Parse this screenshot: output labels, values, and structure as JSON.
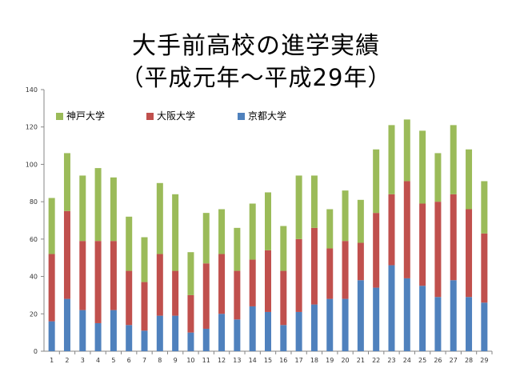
{
  "title_line1": "大手前高校の進学実績",
  "title_line2": "（平成元年～平成29年）",
  "chart_data": {
    "type": "bar",
    "stacked": true,
    "title": "大手前高校の進学実績（平成元年～平成29年）",
    "categories": [
      "1",
      "2",
      "3",
      "4",
      "5",
      "6",
      "7",
      "8",
      "9",
      "10",
      "11",
      "12",
      "13",
      "14",
      "15",
      "16",
      "17",
      "18",
      "19",
      "20",
      "21",
      "22",
      "23",
      "24",
      "25",
      "26",
      "27",
      "28",
      "29"
    ],
    "series": [
      {
        "name": "京都大学",
        "color": "#4f81bd",
        "values": [
          16,
          28,
          22,
          15,
          22,
          14,
          11,
          19,
          19,
          10,
          12,
          20,
          17,
          24,
          21,
          14,
          21,
          25,
          28,
          28,
          38,
          34,
          46,
          39,
          35,
          29,
          38,
          29,
          26
        ]
      },
      {
        "name": "大阪大学",
        "color": "#c0504d",
        "values": [
          36,
          47,
          37,
          44,
          37,
          29,
          26,
          33,
          24,
          20,
          35,
          32,
          26,
          25,
          33,
          29,
          39,
          41,
          27,
          31,
          20,
          40,
          38,
          52,
          44,
          51,
          46,
          47,
          37
        ]
      },
      {
        "name": "神戸大学",
        "color": "#9bbb59",
        "values": [
          30,
          31,
          35,
          39,
          34,
          29,
          24,
          38,
          41,
          23,
          27,
          24,
          23,
          30,
          31,
          24,
          34,
          28,
          21,
          27,
          23,
          34,
          37,
          33,
          39,
          26,
          37,
          32,
          28
        ]
      }
    ],
    "ylim": [
      0,
      140
    ],
    "yticks": [
      0,
      20,
      40,
      60,
      80,
      100,
      120,
      140
    ],
    "grid": false,
    "legend_position": "top-left, horizontal",
    "legend_order": [
      "神戸大学",
      "大阪大学",
      "京都大学"
    ]
  }
}
